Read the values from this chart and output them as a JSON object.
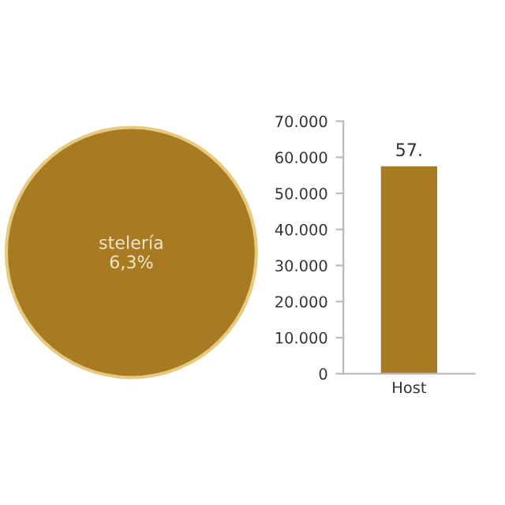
{
  "chart_data": [
    {
      "type": "pie",
      "categories": [
        "stelería"
      ],
      "values": [
        100
      ],
      "annotations": [
        "6,3%"
      ],
      "colors": [
        "#a87a22"
      ]
    },
    {
      "type": "bar",
      "categories": [
        "Host"
      ],
      "values": [
        57500
      ],
      "annotations": [
        "57."
      ],
      "color": "#a87a22",
      "ylim": [
        0,
        70000
      ],
      "yticks": [
        {
          "value": 0,
          "label": "0"
        },
        {
          "value": 10000,
          "label": "10.000"
        },
        {
          "value": 20000,
          "label": "20.000"
        },
        {
          "value": 30000,
          "label": "30.000"
        },
        {
          "value": 40000,
          "label": "40.000"
        },
        {
          "value": 50000,
          "label": "50.000"
        },
        {
          "value": 60000,
          "label": "60.000"
        },
        {
          "value": 70000,
          "label": "70.000"
        }
      ],
      "grid": false
    }
  ]
}
